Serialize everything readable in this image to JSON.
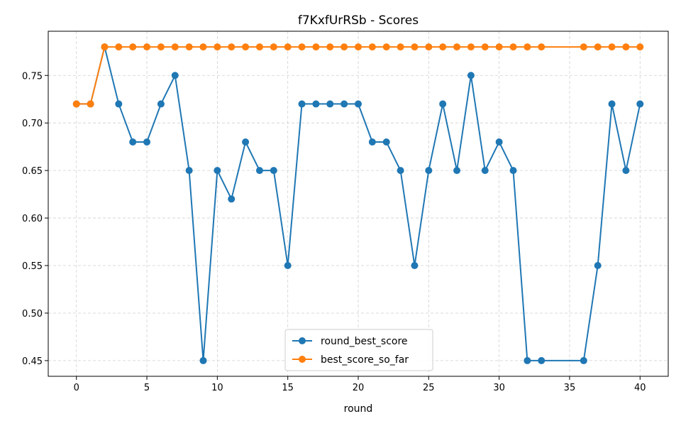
{
  "chart_data": {
    "type": "line",
    "title": "f7KxfUrRSb - Scores",
    "xlabel": "round",
    "ylabel": "",
    "xlim": [
      -2,
      42
    ],
    "ylim": [
      0.4335,
      0.7965
    ],
    "xticks": [
      0,
      5,
      10,
      15,
      20,
      25,
      30,
      35,
      40
    ],
    "yticks": [
      0.45,
      0.5,
      0.55,
      0.6,
      0.65,
      0.7,
      0.75
    ],
    "ytick_labels": [
      "0.45",
      "0.50",
      "0.55",
      "0.60",
      "0.65",
      "0.70",
      "0.75"
    ],
    "grid": true,
    "legend_position": "bottom-center",
    "series": [
      {
        "name": "round_best_score",
        "color": "#1f77b4",
        "x": [
          0,
          1,
          2,
          3,
          4,
          5,
          6,
          7,
          8,
          9,
          10,
          11,
          12,
          13,
          14,
          15,
          16,
          17,
          18,
          19,
          20,
          21,
          22,
          23,
          24,
          25,
          26,
          27,
          28,
          29,
          30,
          31,
          32,
          33,
          36,
          37,
          38,
          39,
          40
        ],
        "values": [
          0.72,
          0.72,
          0.78,
          0.72,
          0.68,
          0.68,
          0.72,
          0.75,
          0.65,
          0.45,
          0.65,
          0.62,
          0.68,
          0.65,
          0.65,
          0.55,
          0.72,
          0.72,
          0.72,
          0.72,
          0.72,
          0.68,
          0.68,
          0.65,
          0.55,
          0.65,
          0.72,
          0.65,
          0.75,
          0.65,
          0.68,
          0.65,
          0.45,
          0.45,
          0.45,
          0.55,
          0.72,
          0.65,
          0.72
        ]
      },
      {
        "name": "best_score_so_far",
        "color": "#ff7f0e",
        "x": [
          0,
          1,
          2,
          3,
          4,
          5,
          6,
          7,
          8,
          9,
          10,
          11,
          12,
          13,
          14,
          15,
          16,
          17,
          18,
          19,
          20,
          21,
          22,
          23,
          24,
          25,
          26,
          27,
          28,
          29,
          30,
          31,
          32,
          33,
          36,
          37,
          38,
          39,
          40
        ],
        "values": [
          0.72,
          0.72,
          0.78,
          0.78,
          0.78,
          0.78,
          0.78,
          0.78,
          0.78,
          0.78,
          0.78,
          0.78,
          0.78,
          0.78,
          0.78,
          0.78,
          0.78,
          0.78,
          0.78,
          0.78,
          0.78,
          0.78,
          0.78,
          0.78,
          0.78,
          0.78,
          0.78,
          0.78,
          0.78,
          0.78,
          0.78,
          0.78,
          0.78,
          0.78,
          0.78,
          0.78,
          0.78,
          0.78,
          0.78
        ]
      }
    ]
  }
}
